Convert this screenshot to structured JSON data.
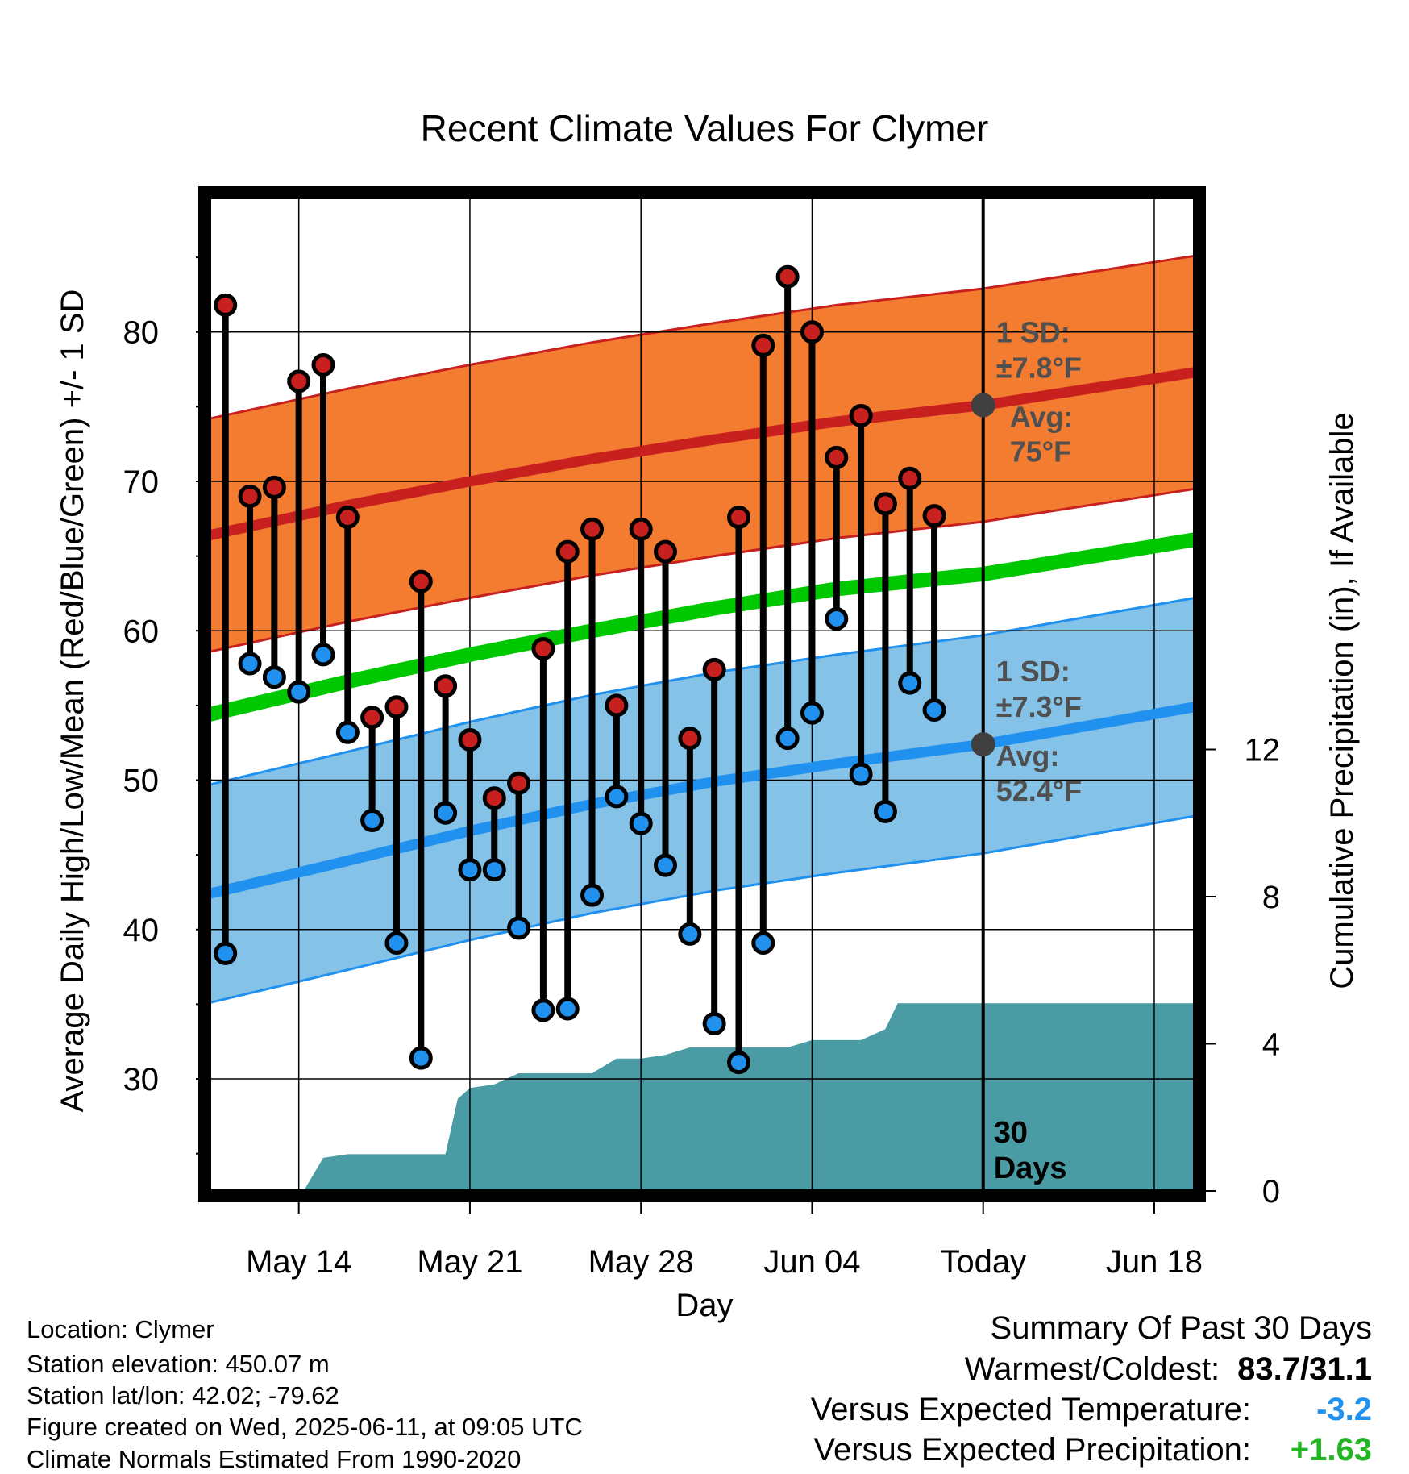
{
  "chart_data": {
    "type": "line",
    "title": "Recent Climate Values For Clymer",
    "xlabel": "Day",
    "ylabel": "Average Daily High/Low/Mean (Red/Blue/Green) +/- 1 SD",
    "y2label": "Cumulative Precipitation (in), If Available",
    "x_tick_labels": [
      "May 14",
      "May 21",
      "May 28",
      "Jun 04",
      "Today",
      "Jun 18"
    ],
    "x_tick_days": [
      3,
      10,
      17,
      24,
      31,
      38
    ],
    "x_days": [
      0,
      1,
      2,
      3,
      4,
      5,
      6,
      7,
      8,
      9,
      10,
      11,
      12,
      13,
      14,
      15,
      16,
      17,
      18,
      19,
      20,
      21,
      22,
      23,
      24,
      25,
      26,
      27,
      28,
      29
    ],
    "xlim_days": [
      -0.65,
      39.65
    ],
    "ylim": [
      22.5,
      89
    ],
    "yticks": [
      30,
      40,
      50,
      60,
      70,
      80
    ],
    "y2lim": [
      0,
      27.0
    ],
    "y2ticks": [
      0,
      4,
      8,
      12
    ],
    "grid": true,
    "series": [
      {
        "name": "Daily High",
        "color": "#c8201e",
        "values": [
          81.8,
          69.0,
          69.6,
          76.7,
          77.8,
          67.6,
          54.2,
          54.9,
          63.3,
          56.3,
          52.7,
          48.8,
          49.8,
          58.8,
          65.3,
          66.8,
          55.0,
          66.8,
          65.3,
          52.8,
          57.4,
          67.6,
          79.1,
          83.7,
          80.0,
          71.6,
          74.4,
          68.5,
          70.2,
          67.7
        ]
      },
      {
        "name": "Daily Low",
        "color": "#2191ef",
        "values": [
          38.4,
          57.8,
          56.9,
          55.9,
          58.4,
          53.2,
          47.3,
          39.1,
          31.4,
          47.8,
          44.0,
          44.0,
          40.1,
          34.6,
          34.7,
          42.3,
          48.9,
          47.1,
          44.3,
          39.7,
          33.7,
          31.1,
          39.1,
          52.8,
          54.5,
          60.8,
          50.4,
          47.9,
          56.5,
          54.7
        ]
      },
      {
        "name": "Normal High",
        "color": "#c8201e",
        "x_days": [
          -0.65,
          5,
          10,
          15,
          20,
          25,
          31,
          39.65
        ],
        "values": [
          66.4,
          68.4,
          70.0,
          71.5,
          72.8,
          74.0,
          75.1,
          77.3
        ],
        "sd": [
          7.8,
          7.8,
          7.8,
          7.8,
          7.8,
          7.8,
          7.8,
          7.8
        ],
        "sd_label": "1 SD:",
        "sd_value_label": "±7.8°F",
        "avg_label": "Avg:",
        "avg_value_label": "75°F"
      },
      {
        "name": "Normal Low",
        "color": "#2191ef",
        "x_days": [
          -0.65,
          5,
          10,
          15,
          20,
          25,
          31,
          39.65
        ],
        "values": [
          42.4,
          44.6,
          46.6,
          48.4,
          49.9,
          51.1,
          52.4,
          54.9
        ],
        "sd": [
          7.3,
          7.3,
          7.3,
          7.3,
          7.3,
          7.3,
          7.3,
          7.3
        ],
        "sd_label": "1 SD:",
        "sd_value_label": "±7.3°F",
        "avg_label": "Avg:",
        "avg_value_label": "52.4°F"
      },
      {
        "name": "Normal Mean",
        "color": "#00c800",
        "x_days": [
          -0.65,
          5,
          10,
          15,
          20,
          25,
          31,
          39.65
        ],
        "values": [
          54.4,
          56.6,
          58.4,
          60.0,
          61.5,
          62.8,
          63.8,
          66.1
        ]
      },
      {
        "name": "Cumulative Precipitation",
        "color": "#4a9ba3",
        "axis": "y2",
        "x_days": [
          3.2,
          4.0,
          5.0,
          6.0,
          7.0,
          8.0,
          9.0,
          9.5,
          10.0,
          11.0,
          12.0,
          13.0,
          14.0,
          15.0,
          16.0,
          17.0,
          18.0,
          19.0,
          20.0,
          21.0,
          22.0,
          23.0,
          24.0,
          25.0,
          26.0,
          27.0,
          27.5,
          28.0,
          31.0,
          35.0,
          39.65
        ],
        "values": [
          0.0,
          0.9,
          1.0,
          1.0,
          1.0,
          1.0,
          1.0,
          2.5,
          2.8,
          2.9,
          3.2,
          3.2,
          3.2,
          3.2,
          3.6,
          3.6,
          3.7,
          3.9,
          3.9,
          3.9,
          3.9,
          3.9,
          4.1,
          4.1,
          4.1,
          4.4,
          5.1,
          5.1,
          5.1,
          5.1,
          5.1
        ]
      }
    ],
    "today_day": 31,
    "window_label": [
      "30",
      "Days"
    ]
  },
  "station": {
    "location": "Location: Clymer",
    "elevation": "Station elevation: 450.07 m",
    "latlon": "Station lat/lon: 42.02; -79.62",
    "created": "Figure created on Wed, 2025-06-11, at 09:05 UTC",
    "normals": "Climate Normals Estimated From 1990-2020"
  },
  "summary": {
    "title": "Summary Of Past 30 Days",
    "warm_cold_label": "Warmest/Coldest:",
    "warm_cold_value": "83.7/31.1",
    "temp_label": "Versus Expected Temperature:",
    "temp_value": "-3.2",
    "temp_color": "#2191ef",
    "precip_label": "Versus Expected Precipitation:",
    "precip_value": "+1.63",
    "precip_color": "#22b522"
  },
  "colors": {
    "high_band": "#f47c30",
    "low_band": "#84c2e8",
    "precip_fill": "#4a9ba3",
    "today_marker": "#404040",
    "annotation_text": "#505050"
  }
}
